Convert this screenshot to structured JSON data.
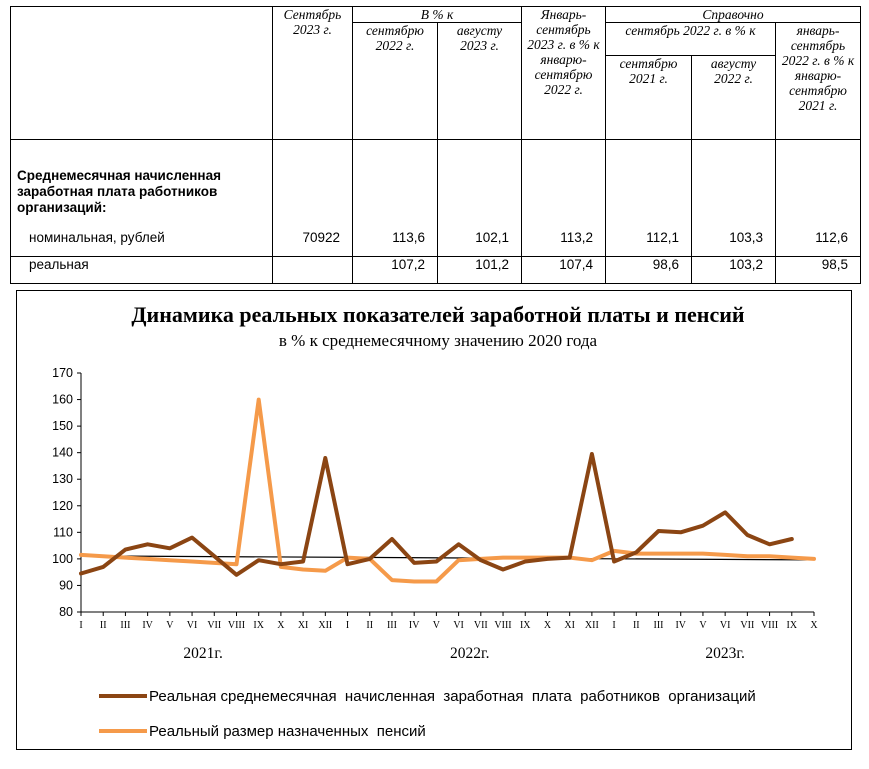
{
  "table": {
    "header": {
      "col_current": "Сентябрь 2023 г.",
      "group_pct": "В % к",
      "col_sep22": "сентябрю 2022 г.",
      "col_aug23": "августу 2023 г.",
      "col_ytd": "Январь-сентябрь 2023 г. в % к январю-сентябрю 2022 г.",
      "group_ref": "Справочно",
      "group_ref_sub": "сентябрь 2022 г. в % к",
      "col_ref_sep21": "сентябрю 2021 г.",
      "col_ref_aug22": "августу 2022 г.",
      "col_ref_ytd": "январь-сентябрь 2022 г. в % к январю-сентябрю 2021 г."
    },
    "section_label": "Среднемесячная начисленная заработная плата работников организаций:",
    "rows": [
      {
        "label": "номинальная, рублей",
        "values": [
          "70922",
          "113,6",
          "102,1",
          "113,2",
          "112,1",
          "103,3",
          "112,6"
        ]
      },
      {
        "label": "реальная",
        "values": [
          "",
          "107,2",
          "101,2",
          "107,4",
          "98,6",
          "103,2",
          "98,5"
        ]
      }
    ]
  },
  "chart_data": {
    "type": "line",
    "title": "Динамика реальных показателей заработной платы и пенсий",
    "subtitle": "в % к среднемесячному значению 2020 года",
    "ylim": [
      80,
      170
    ],
    "yticks": [
      80,
      90,
      100,
      110,
      120,
      130,
      140,
      150,
      160,
      170
    ],
    "categories": [
      "I",
      "II",
      "III",
      "IV",
      "V",
      "VI",
      "VII",
      "VIII",
      "IX",
      "X",
      "XI",
      "XII",
      "I",
      "II",
      "III",
      "IV",
      "V",
      "VI",
      "VII",
      "VIII",
      "IX",
      "X",
      "XI",
      "XII",
      "I",
      "II",
      "III",
      "IV",
      "V",
      "VI",
      "VII",
      "VIII",
      "IX",
      "X"
    ],
    "year_labels": [
      "2021г.",
      "2022г.",
      "2023г."
    ],
    "reference_line": 100,
    "grid": false,
    "legend_position": "bottom",
    "series": [
      {
        "name": "Реальная среднемесячная  начисленная  заработная  плата  работников  организаций",
        "color": "#8b4513",
        "values": [
          94.5,
          97,
          103.5,
          105.5,
          104,
          108,
          101,
          94,
          99.5,
          98,
          99,
          138,
          98,
          100,
          107.5,
          98.5,
          99,
          105.5,
          99.5,
          96,
          99,
          100,
          100.5,
          139.5,
          99,
          102.5,
          110.5,
          110,
          112.5,
          117.5,
          109,
          105.5,
          107.5,
          null
        ]
      },
      {
        "name": "Реальный размер назначенных  пенсий",
        "color": "#f59a4a",
        "values": [
          101.5,
          101,
          100.5,
          100,
          99.5,
          99,
          98.5,
          98,
          160,
          97,
          96,
          95.5,
          100.5,
          100,
          92,
          91.5,
          91.5,
          99.5,
          100,
          100.5,
          100.5,
          100.5,
          100.5,
          99.5,
          103,
          102,
          102,
          102,
          102,
          101.5,
          101,
          101,
          100.5,
          100
        ]
      }
    ]
  }
}
